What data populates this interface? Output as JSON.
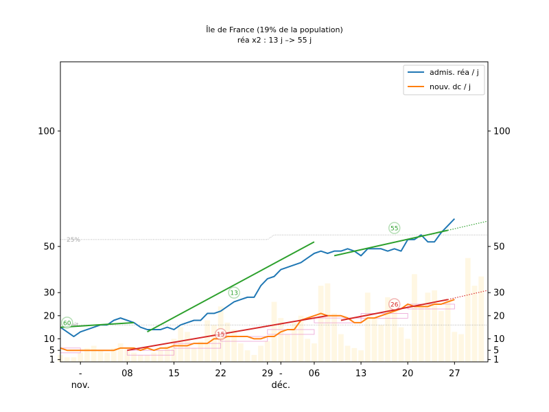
{
  "chart_data": {
    "type": "line",
    "title": "Île de France (19% de la population)",
    "subtitle": "réa x2 : 13 j –> 55 j",
    "x_start": "2020-10-29",
    "x_end": "2021-01-01",
    "xlim": [
      "2020-10-29",
      "2021-01-01"
    ],
    "ylim": [
      0,
      130
    ],
    "y_ticks": [
      1,
      5,
      10,
      20,
      30,
      50,
      100
    ],
    "x_ticks": [
      {
        "date": "2020-11-01",
        "label": "-"
      },
      {
        "date": "2020-11-08",
        "label": "08"
      },
      {
        "date": "2020-11-15",
        "label": "15"
      },
      {
        "date": "2020-11-22",
        "label": "22"
      },
      {
        "date": "2020-11-29",
        "label": "29"
      },
      {
        "date": "2020-12-01",
        "label": "-"
      },
      {
        "date": "2020-12-06",
        "label": "06"
      },
      {
        "date": "2020-12-13",
        "label": "13"
      },
      {
        "date": "2020-12-20",
        "label": "20"
      },
      {
        "date": "2020-12-27",
        "label": "27"
      }
    ],
    "month_labels": [
      {
        "date": "2020-11-01",
        "label": "nov."
      },
      {
        "date": "2020-12-01",
        "label": "déc."
      }
    ],
    "series": [
      {
        "name": "admis. réa / j",
        "color": "#1f77b4",
        "start": "2020-10-29",
        "values": [
          15,
          13,
          11,
          13,
          14,
          15,
          16,
          16,
          18,
          19,
          18,
          17,
          15,
          14,
          14,
          14,
          15,
          14,
          16,
          17,
          18,
          18,
          21,
          21,
          22,
          24,
          26,
          27,
          28,
          28,
          33,
          36,
          37,
          40,
          41,
          42,
          43,
          45,
          47,
          48,
          47,
          48,
          48,
          49,
          48,
          46,
          49,
          49,
          49,
          48,
          49,
          48,
          53,
          53,
          55,
          52,
          52,
          56,
          59,
          62
        ]
      },
      {
        "name": "nouv. dc / j",
        "color": "#ff7f0e",
        "start": "2020-10-29",
        "values": [
          6,
          5,
          5,
          5,
          5,
          5,
          5,
          5,
          5,
          6,
          6,
          6,
          5,
          6,
          5,
          6,
          6,
          7,
          7,
          7,
          8,
          8,
          8,
          10,
          10,
          11,
          11,
          11,
          11,
          10,
          10,
          11,
          11,
          13,
          14,
          14,
          18,
          19,
          20,
          21,
          20,
          20,
          20,
          19,
          17,
          17,
          19,
          19,
          20,
          21,
          22,
          23,
          25,
          24,
          24,
          24,
          25,
          25,
          26,
          27
        ]
      }
    ],
    "trend_lines": [
      {
        "color": "#2ca02c",
        "style": "solid",
        "from": {
          "date": "2020-10-29",
          "y": 15
        },
        "to": {
          "date": "2020-11-09",
          "y": 17
        }
      },
      {
        "color": "#2ca02c",
        "style": "solid",
        "from": {
          "date": "2020-11-11",
          "y": 13
        },
        "to": {
          "date": "2020-12-06",
          "y": 52
        }
      },
      {
        "color": "#2ca02c",
        "style": "solid",
        "from": {
          "date": "2020-12-09",
          "y": 46
        },
        "to": {
          "date": "2020-12-26",
          "y": 57
        }
      },
      {
        "color": "#2ca02c",
        "style": "dotted",
        "from": {
          "date": "2020-12-26",
          "y": 57
        },
        "to": {
          "date": "2021-01-01",
          "y": 61
        }
      },
      {
        "color": "#d62728",
        "style": "solid",
        "from": {
          "date": "2020-11-08",
          "y": 5
        },
        "to": {
          "date": "2020-12-08",
          "y": 20
        }
      },
      {
        "color": "#d62728",
        "style": "solid",
        "from": {
          "date": "2020-12-10",
          "y": 18
        },
        "to": {
          "date": "2020-12-26",
          "y": 27
        }
      },
      {
        "color": "#d62728",
        "style": "dotted",
        "from": {
          "date": "2020-12-26",
          "y": 27
        },
        "to": {
          "date": "2021-01-01",
          "y": 31
        }
      }
    ],
    "reference_lines": [
      {
        "label": "25%",
        "points": [
          {
            "date": "2020-10-29",
            "y": 53
          },
          {
            "date": "2020-11-29",
            "y": 53
          },
          {
            "date": "2020-11-30",
            "y": 55
          },
          {
            "date": "2021-01-01",
            "y": 55
          }
        ]
      },
      {
        "label": "nuit",
        "points": [
          {
            "date": "2020-10-29",
            "y": 16
          },
          {
            "date": "2021-01-01",
            "y": 16
          }
        ]
      }
    ],
    "annotations": [
      {
        "text": "60",
        "date": "2020-10-30",
        "y": 17,
        "color": "#2ca02c"
      },
      {
        "text": "13",
        "date": "2020-11-24",
        "y": 30,
        "color": "#2ca02c"
      },
      {
        "text": "55",
        "date": "2020-12-18",
        "y": 58,
        "color": "#2ca02c"
      },
      {
        "text": "15",
        "date": "2020-11-22",
        "y": 12,
        "color": "#d62728"
      },
      {
        "text": "26",
        "date": "2020-12-18",
        "y": 25,
        "color": "#d62728"
      }
    ],
    "weekly_boxes": [
      {
        "from": "2020-10-29",
        "to": "2020-11-01",
        "y": 6
      },
      {
        "from": "2020-11-08",
        "to": "2020-11-15",
        "y": 5
      },
      {
        "from": "2020-11-15",
        "to": "2020-11-22",
        "y": 8
      },
      {
        "from": "2020-11-22",
        "to": "2020-11-29",
        "y": 11
      },
      {
        "from": "2020-11-29",
        "to": "2020-12-06",
        "y": 14
      },
      {
        "from": "2020-12-06",
        "to": "2020-12-13",
        "y": 19
      },
      {
        "from": "2020-12-13",
        "to": "2020-12-20",
        "y": 21
      },
      {
        "from": "2020-12-20",
        "to": "2020-12-27",
        "y": 25
      }
    ],
    "background_bars": {
      "start": "2020-10-29",
      "values": [
        3,
        2,
        2,
        4,
        6,
        7,
        5,
        4,
        6,
        8,
        6,
        4,
        3,
        3,
        4,
        5,
        7,
        10,
        15,
        13,
        6,
        9,
        18,
        16,
        24,
        17,
        14,
        8,
        5,
        3,
        7,
        9,
        26,
        19,
        12,
        17,
        20,
        10,
        8,
        33,
        34,
        21,
        12,
        7,
        6,
        5,
        30,
        19,
        16,
        28,
        27,
        15,
        10,
        38,
        25,
        30,
        31,
        22,
        27,
        13,
        12,
        45,
        33,
        37
      ]
    },
    "legend": {
      "position": "top-right",
      "entries": [
        "admis. réa / j",
        "nouv. dc / j"
      ]
    },
    "grid": false
  }
}
